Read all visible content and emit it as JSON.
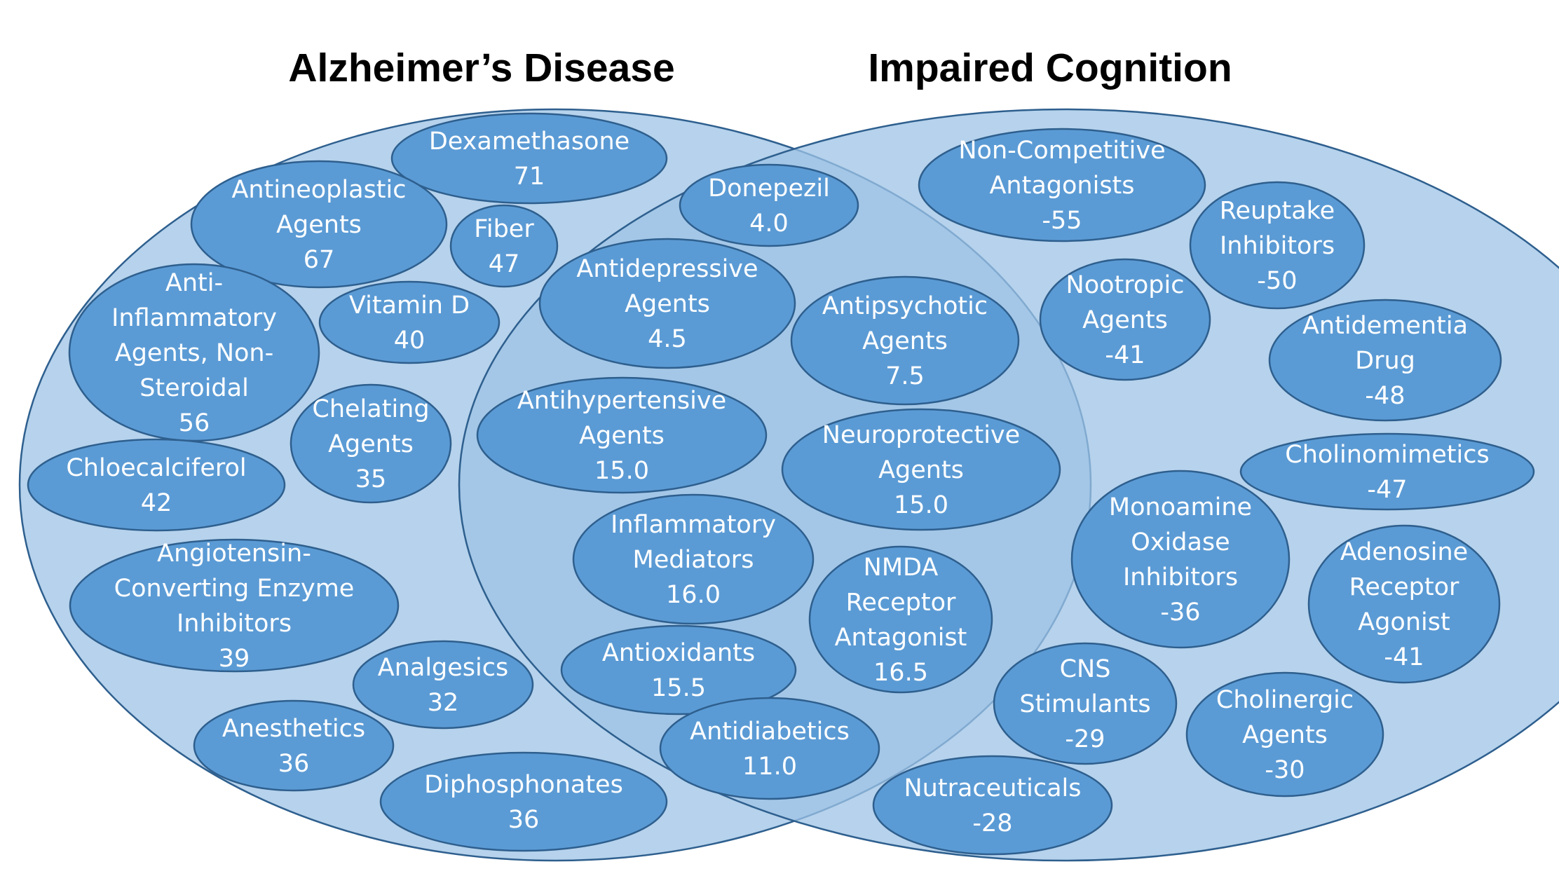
{
  "diagram": {
    "type": "venn",
    "sets": [
      {
        "name": "Alzheimer’s Disease",
        "key": "alzheimers"
      },
      {
        "name": "Impaired Cognition",
        "key": "impaired"
      }
    ],
    "items": [
      {
        "id": "dexamethasone",
        "region": "alzheimers",
        "lines": [
          "Dexamethasone",
          "71"
        ]
      },
      {
        "id": "antineoplastic-agents",
        "region": "alzheimers",
        "lines": [
          "Antineoplastic",
          "Agents",
          "67"
        ]
      },
      {
        "id": "fiber",
        "region": "alzheimers",
        "lines": [
          "Fiber",
          "47"
        ]
      },
      {
        "id": "anti-inflammatory-nonsteroidal",
        "region": "alzheimers",
        "lines": [
          "Anti-",
          "Inflammatory",
          "Agents, Non-",
          "Steroidal",
          "56"
        ]
      },
      {
        "id": "vitamin-d",
        "region": "alzheimers",
        "lines": [
          "Vitamin D",
          "40"
        ]
      },
      {
        "id": "chelating-agents",
        "region": "alzheimers",
        "lines": [
          "Chelating",
          "Agents",
          "35"
        ]
      },
      {
        "id": "chloecalciferol",
        "region": "alzheimers",
        "lines": [
          "Chloecalciferol",
          "42"
        ]
      },
      {
        "id": "ace-inhibitors",
        "region": "alzheimers",
        "lines": [
          "Angiotensin-",
          "Converting Enzyme",
          "Inhibitors",
          "39"
        ]
      },
      {
        "id": "analgesics",
        "region": "alzheimers",
        "lines": [
          "Analgesics",
          "32"
        ]
      },
      {
        "id": "anesthetics",
        "region": "alzheimers",
        "lines": [
          "Anesthetics",
          "36"
        ]
      },
      {
        "id": "diphosphonates",
        "region": "alzheimers",
        "lines": [
          "Diphosphonates",
          "36"
        ]
      },
      {
        "id": "donepezil",
        "region": "both",
        "lines": [
          "Donepezil",
          "4.0"
        ]
      },
      {
        "id": "antidepressive-agents",
        "region": "both",
        "lines": [
          "Antidepressive",
          "Agents",
          "4.5"
        ]
      },
      {
        "id": "antipsychotic-agents",
        "region": "both",
        "lines": [
          "Antipsychotic",
          "Agents",
          "7.5"
        ]
      },
      {
        "id": "antihypertensive-agents",
        "region": "both",
        "lines": [
          "Antihypertensive",
          "Agents",
          "15.0"
        ]
      },
      {
        "id": "neuroprotective-agents",
        "region": "both",
        "lines": [
          "Neuroprotective",
          "Agents",
          "15.0"
        ]
      },
      {
        "id": "inflammatory-mediators",
        "region": "both",
        "lines": [
          "Inflammatory",
          "Mediators",
          "16.0"
        ]
      },
      {
        "id": "nmda-receptor-antagonist",
        "region": "both",
        "lines": [
          "NMDA",
          "Receptor",
          "Antagonist",
          "16.5"
        ]
      },
      {
        "id": "antioxidants",
        "region": "both",
        "lines": [
          "Antioxidants",
          "15.5"
        ]
      },
      {
        "id": "antidiabetics",
        "region": "both",
        "lines": [
          "Antidiabetics",
          "11.0"
        ]
      },
      {
        "id": "non-competitive-antagonists",
        "region": "impaired",
        "lines": [
          "Non-Competitive",
          "Antagonists",
          "-55"
        ]
      },
      {
        "id": "reuptake-inhibitors",
        "region": "impaired",
        "lines": [
          "Reuptake",
          "Inhibitors",
          "-50"
        ]
      },
      {
        "id": "nootropic-agents",
        "region": "impaired",
        "lines": [
          "Nootropic",
          "Agents",
          "-41"
        ]
      },
      {
        "id": "antidementia-drug",
        "region": "impaired",
        "lines": [
          "Antidementia",
          "Drug",
          "-48"
        ]
      },
      {
        "id": "cholinomimetics",
        "region": "impaired",
        "lines": [
          "Cholinomimetics",
          "-47"
        ]
      },
      {
        "id": "monoamine-oxidase-inhibitors",
        "region": "impaired",
        "lines": [
          "Monoamine",
          "Oxidase",
          "Inhibitors",
          "-36"
        ]
      },
      {
        "id": "adenosine-receptor-agonist",
        "region": "impaired",
        "lines": [
          "Adenosine",
          "Receptor",
          "Agonist",
          "-41"
        ]
      },
      {
        "id": "cns-stimulants",
        "region": "impaired",
        "lines": [
          "CNS",
          "Stimulants",
          "-29"
        ]
      },
      {
        "id": "cholinergic-agents",
        "region": "impaired",
        "lines": [
          "Cholinergic",
          "Agents",
          "-30"
        ]
      },
      {
        "id": "nutraceuticals",
        "region": "impaired",
        "lines": [
          "Nutraceuticals",
          "-28"
        ]
      }
    ]
  }
}
